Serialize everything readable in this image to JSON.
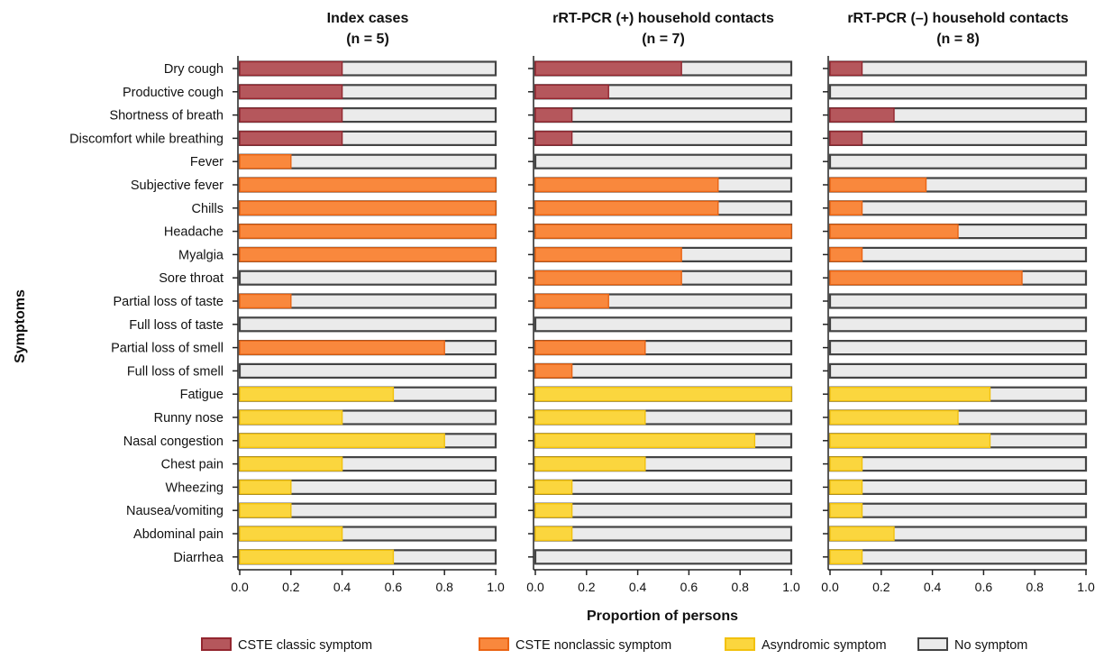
{
  "chart_data": {
    "type": "bar",
    "stacked": true,
    "orientation": "horizontal",
    "ylabel": "Symptoms",
    "xlabel": "Proportion of persons",
    "xlim": [
      0,
      1
    ],
    "x_ticks": [
      "0.0",
      "0.2",
      "0.4",
      "0.6",
      "0.8",
      "1.0"
    ],
    "categories": [
      "Dry cough",
      "Productive cough",
      "Shortness of breath",
      "Discomfort while breathing",
      "Fever",
      "Subjective fever",
      "Chills",
      "Headache",
      "Myalgia",
      "Sore throat",
      "Partial loss of taste",
      "Full loss of taste",
      "Partial loss of smell",
      "Full loss of smell",
      "Fatigue",
      "Runny nose",
      "Nasal congestion",
      "Chest pain",
      "Wheezing",
      "Nausea/vomiting",
      "Abdominal pain",
      "Diarrhea"
    ],
    "symptom_class": [
      "classic",
      "classic",
      "classic",
      "classic",
      "nonclassic",
      "nonclassic",
      "nonclassic",
      "nonclassic",
      "nonclassic",
      "nonclassic",
      "nonclassic",
      "nonclassic",
      "nonclassic",
      "nonclassic",
      "asyndromic",
      "asyndromic",
      "asyndromic",
      "asyndromic",
      "asyndromic",
      "asyndromic",
      "asyndromic",
      "asyndromic"
    ],
    "panels": [
      {
        "title_line1": "Index cases",
        "title_line2": "(n = 5)",
        "values": [
          0.4,
          0.4,
          0.4,
          0.4,
          0.2,
          1.0,
          1.0,
          1.0,
          1.0,
          0.0,
          0.2,
          0.0,
          0.8,
          0.0,
          0.6,
          0.4,
          0.8,
          0.4,
          0.2,
          0.2,
          0.4,
          0.6
        ]
      },
      {
        "title_line1": "rRT-PCR (+) household contacts",
        "title_line2": "(n = 7)",
        "values": [
          0.571,
          0.286,
          0.143,
          0.143,
          0.0,
          0.714,
          0.714,
          1.0,
          0.571,
          0.571,
          0.286,
          0.0,
          0.429,
          0.143,
          1.0,
          0.429,
          0.857,
          0.429,
          0.143,
          0.143,
          0.143,
          0.0
        ]
      },
      {
        "title_line1": "rRT-PCR (–) household contacts",
        "title_line2": "(n = 8)",
        "values": [
          0.125,
          0.0,
          0.25,
          0.125,
          0.0,
          0.375,
          0.125,
          0.5,
          0.125,
          0.75,
          0.0,
          0.0,
          0.0,
          0.0,
          0.625,
          0.5,
          0.625,
          0.125,
          0.125,
          0.125,
          0.25,
          0.125
        ]
      }
    ],
    "legend": {
      "position": "bottom",
      "items": [
        {
          "key": "classic",
          "label": "CSTE classic symptom",
          "color": "#b5575c",
          "stroke": "#93262f"
        },
        {
          "key": "nonclassic",
          "label": "CSTE nonclassic symptom",
          "color": "#f9883d",
          "stroke": "#ea6413"
        },
        {
          "key": "asyndromic",
          "label": "Asyndromic symptom",
          "color": "#fbd63e",
          "stroke": "#f2c10d"
        },
        {
          "key": "none",
          "label": "No symptom",
          "color": "#ebebeb",
          "stroke": "#444444"
        }
      ]
    },
    "grid": false
  }
}
